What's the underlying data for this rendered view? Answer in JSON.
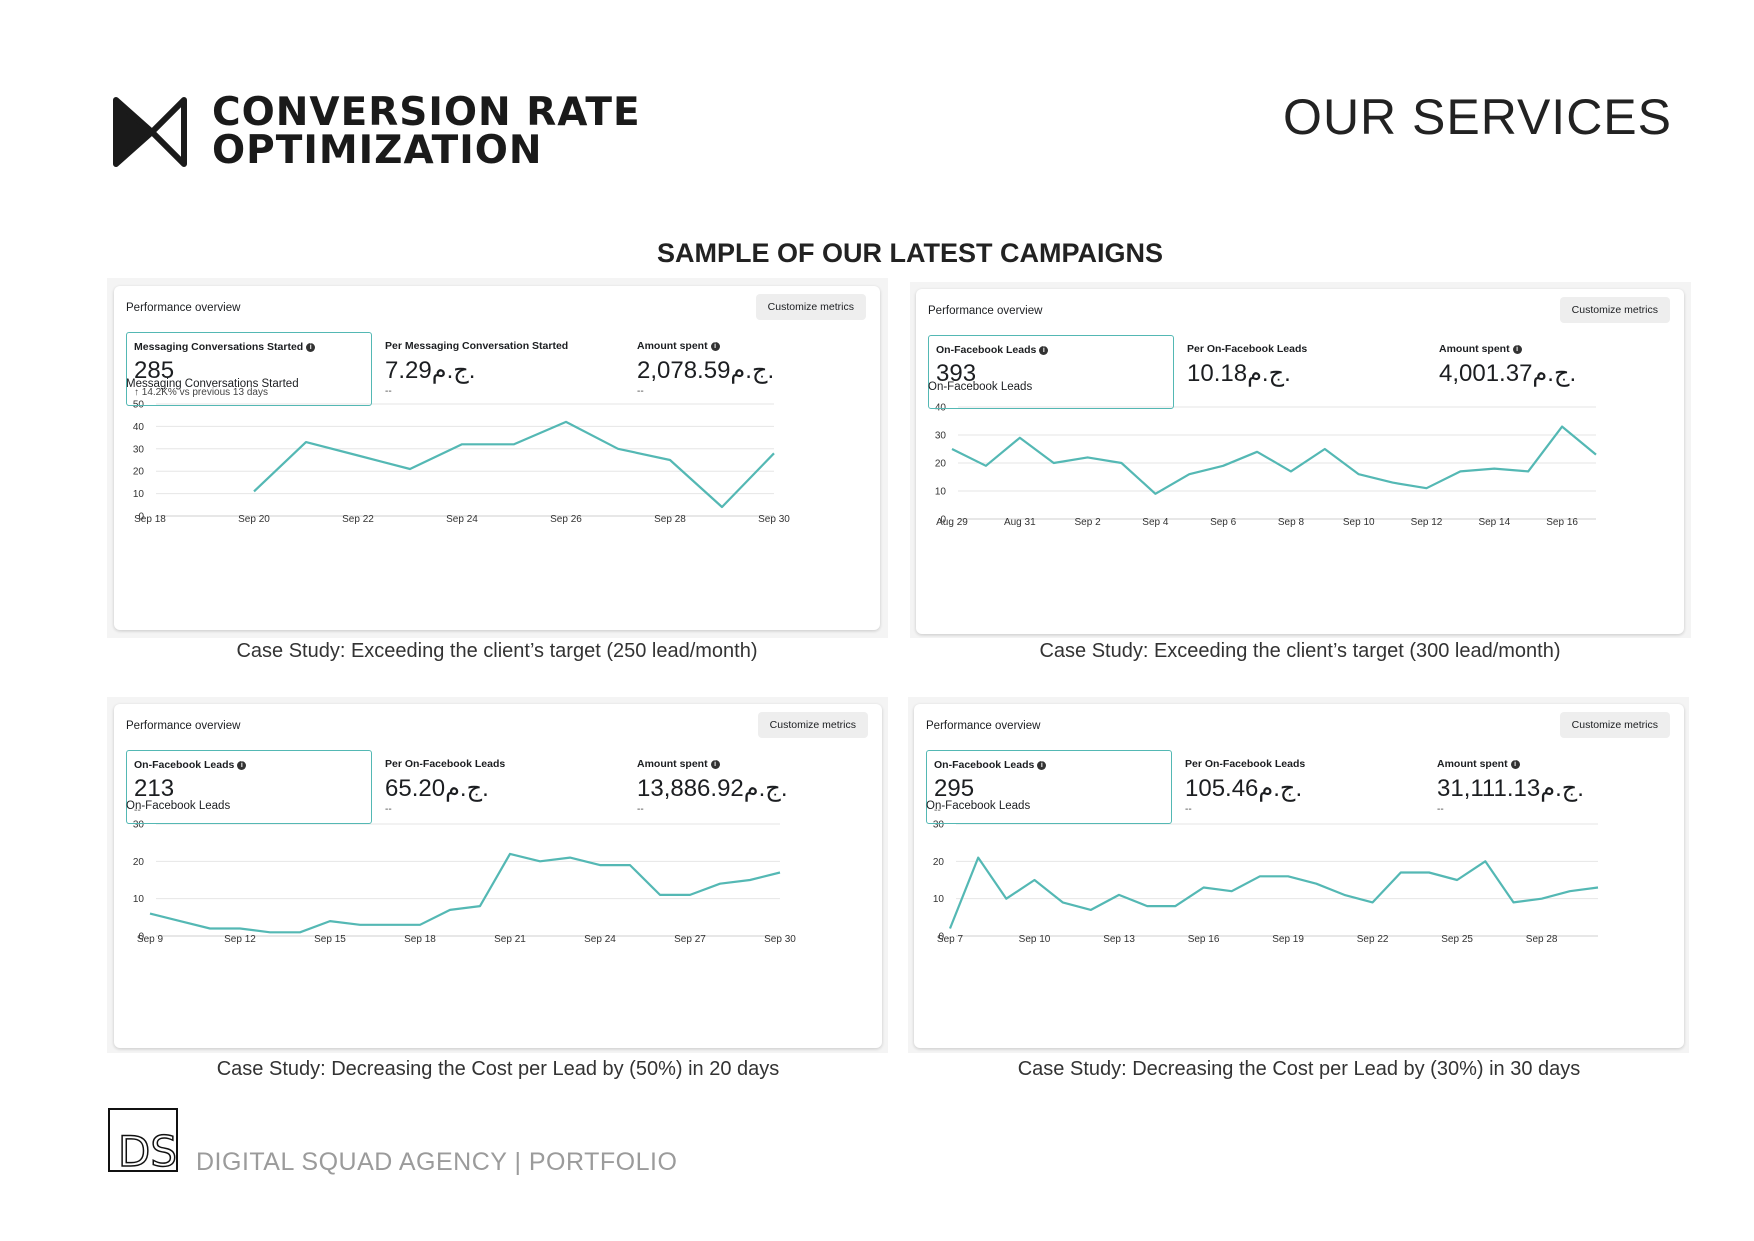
{
  "header": {
    "logo_name": "bowtie-logo",
    "title_line1": "CONVERSION RATE",
    "title_line2": "OPTIMIZATION",
    "section_label": "OUR SERVICES"
  },
  "section_title": "SAMPLE OF OUR LATEST CAMPAIGNS",
  "accent_color": "#54b8b4",
  "panels": [
    {
      "overview_label": "Performance overview",
      "customize_label": "Customize metrics",
      "metrics": [
        {
          "label": "Messaging Conversations Started",
          "value": "285",
          "sub": "↑ 14.2K% vs previous 13 days"
        },
        {
          "label": "Per Messaging Conversation Started",
          "value": "7.29ج.م.",
          "sub": "--"
        },
        {
          "label": "Amount spent",
          "value": "2,078.59ج.م.",
          "sub": "--"
        }
      ],
      "chart_title": "Messaging Conversations Started",
      "caption": "Case Study: Exceeding the client’s target (250 lead/month)"
    },
    {
      "overview_label": "Performance overview",
      "customize_label": "Customize metrics",
      "metrics": [
        {
          "label": "On-Facebook Leads",
          "value": "393",
          "sub": ""
        },
        {
          "label": "Per On-Facebook Leads",
          "value": "10.18ج.م.",
          "sub": ""
        },
        {
          "label": "Amount spent",
          "value": "4,001.37ج.م.",
          "sub": ""
        }
      ],
      "chart_title": "On-Facebook Leads",
      "caption": "Case Study: Exceeding the client’s target (300 lead/month)"
    },
    {
      "overview_label": "Performance overview",
      "customize_label": "Customize metrics",
      "metrics": [
        {
          "label": "On-Facebook Leads",
          "value": "213",
          "sub": "--"
        },
        {
          "label": "Per On-Facebook Leads",
          "value": "65.20ج.م.",
          "sub": "--"
        },
        {
          "label": "Amount spent",
          "value": "13,886.92ج.م.",
          "sub": "--"
        }
      ],
      "chart_title": "On-Facebook Leads",
      "caption": "Case Study: Decreasing the Cost per Lead by (50%) in 20 days"
    },
    {
      "overview_label": "Performance overview",
      "customize_label": "Customize metrics",
      "metrics": [
        {
          "label": "On-Facebook Leads",
          "value": "295",
          "sub": "--"
        },
        {
          "label": "Per On-Facebook Leads",
          "value": "105.46ج.م.",
          "sub": "--"
        },
        {
          "label": "Amount spent",
          "value": "31,111.13ج.م.",
          "sub": "--"
        }
      ],
      "chart_title": "On-Facebook Leads",
      "caption": "Case Study: Decreasing the Cost per Lead by (30%) in 30 days"
    }
  ],
  "chart_data": [
    {
      "type": "line",
      "title": "Messaging Conversations Started",
      "ylim": [
        0,
        50
      ],
      "yticks": [
        0,
        10,
        20,
        30,
        40,
        50
      ],
      "x_count": 13,
      "xticks": [
        {
          "i": 0,
          "label": "Sep 18"
        },
        {
          "i": 2,
          "label": "Sep 20"
        },
        {
          "i": 4,
          "label": "Sep 22"
        },
        {
          "i": 6,
          "label": "Sep 24"
        },
        {
          "i": 8,
          "label": "Sep 26"
        },
        {
          "i": 10,
          "label": "Sep 28"
        },
        {
          "i": 12,
          "label": "Sep 30"
        }
      ],
      "x_start": 2,
      "values": [
        11,
        33,
        27,
        21,
        32,
        32,
        42,
        30,
        25,
        4,
        28
      ]
    },
    {
      "type": "line",
      "title": "On-Facebook Leads",
      "ylim": [
        0,
        40
      ],
      "yticks": [
        0,
        10,
        20,
        30,
        40
      ],
      "x_count": 20,
      "xticks": [
        {
          "i": 0,
          "label": "Aug 29"
        },
        {
          "i": 2,
          "label": "Aug 31"
        },
        {
          "i": 4,
          "label": "Sep 2"
        },
        {
          "i": 6,
          "label": "Sep 4"
        },
        {
          "i": 8,
          "label": "Sep 6"
        },
        {
          "i": 10,
          "label": "Sep 8"
        },
        {
          "i": 12,
          "label": "Sep 10"
        },
        {
          "i": 14,
          "label": "Sep 12"
        },
        {
          "i": 16,
          "label": "Sep 14"
        },
        {
          "i": 18,
          "label": "Sep 16"
        }
      ],
      "x_start": 0,
      "values": [
        25,
        19,
        29,
        20,
        22,
        20,
        9,
        16,
        19,
        24,
        17,
        25,
        16,
        13,
        11,
        17,
        18,
        17,
        33,
        23
      ]
    },
    {
      "type": "line",
      "title": "On-Facebook Leads",
      "ylim": [
        0,
        30
      ],
      "yticks": [
        0,
        10,
        20,
        30
      ],
      "x_count": 22,
      "xticks": [
        {
          "i": 0,
          "label": "Sep 9"
        },
        {
          "i": 3,
          "label": "Sep 12"
        },
        {
          "i": 6,
          "label": "Sep 15"
        },
        {
          "i": 9,
          "label": "Sep 18"
        },
        {
          "i": 12,
          "label": "Sep 21"
        },
        {
          "i": 15,
          "label": "Sep 24"
        },
        {
          "i": 18,
          "label": "Sep 27"
        },
        {
          "i": 21,
          "label": "Sep 30"
        }
      ],
      "x_start": 0,
      "values": [
        6,
        4,
        2,
        2,
        1,
        1,
        4,
        3,
        3,
        3,
        7,
        8,
        22,
        20,
        21,
        19,
        19,
        11,
        11,
        14,
        15,
        17
      ]
    },
    {
      "type": "line",
      "title": "On-Facebook Leads",
      "ylim": [
        0,
        30
      ],
      "yticks": [
        0,
        10,
        20,
        30
      ],
      "x_count": 22,
      "xticks": [
        {
          "i": 0,
          "label": "Sep 7"
        },
        {
          "i": 3,
          "label": "Sep 10"
        },
        {
          "i": 6,
          "label": "Sep 13"
        },
        {
          "i": 9,
          "label": "Sep 16"
        },
        {
          "i": 12,
          "label": "Sep 19"
        },
        {
          "i": 15,
          "label": "Sep 22"
        },
        {
          "i": 18,
          "label": "Sep 25"
        },
        {
          "i": 21,
          "label": "Sep 28"
        }
      ],
      "x_start": 0,
      "x_end_extra": 2,
      "values": [
        2,
        21,
        10,
        15,
        9,
        7,
        11,
        8,
        8,
        13,
        12,
        16,
        16,
        14,
        11,
        9,
        17,
        17,
        15,
        20,
        9,
        10,
        12,
        13
      ]
    }
  ],
  "footer": {
    "logo_text": "DS",
    "text": "DIGITAL SQUAD AGENCY | PORTFOLIO"
  }
}
